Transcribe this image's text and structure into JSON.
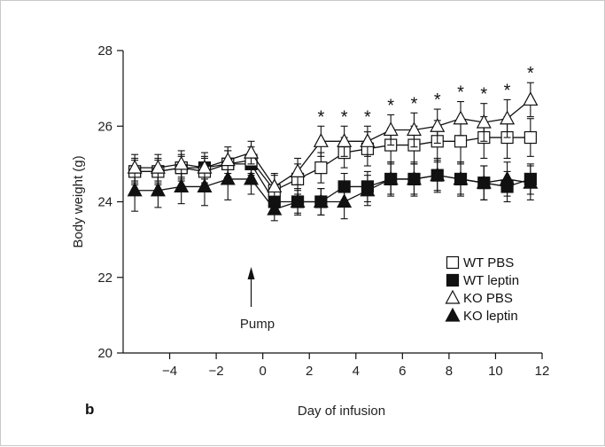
{
  "chart_data": {
    "type": "line",
    "panel_label": "b",
    "xlabel": "Day of infusion",
    "ylabel": "Body weight (g)",
    "xlim": [
      -6,
      12
    ],
    "ylim": [
      20,
      28
    ],
    "xticks": [
      -4,
      -2,
      0,
      2,
      4,
      6,
      8,
      10,
      12
    ],
    "yticks": [
      20,
      22,
      24,
      26,
      28
    ],
    "xtick_labels": [
      "−4",
      "−2",
      "0",
      "2",
      "4",
      "6",
      "8",
      "10",
      "12"
    ],
    "ytick_labels": [
      "20",
      "22",
      "24",
      "26",
      "28"
    ],
    "grid": false,
    "legend": "bottom-right",
    "x": [
      -5.5,
      -4.5,
      -3.5,
      -2.5,
      -1.5,
      -0.5,
      0.5,
      1.5,
      2.5,
      3.5,
      4.5,
      5.5,
      6.5,
      7.5,
      8.5,
      9.5,
      10.5,
      11.5
    ],
    "series": [
      {
        "name": "WT PBS",
        "marker": "square-open",
        "values": [
          24.8,
          24.8,
          24.9,
          24.8,
          25.0,
          25.1,
          24.3,
          24.6,
          24.9,
          25.3,
          25.4,
          25.5,
          25.5,
          25.6,
          25.6,
          25.7,
          25.7,
          25.7
        ],
        "error": [
          0.35,
          0.35,
          0.35,
          0.35,
          0.35,
          0.35,
          0.4,
          0.4,
          0.4,
          0.4,
          0.45,
          0.45,
          0.5,
          0.55,
          0.55,
          0.55,
          0.55,
          0.5
        ]
      },
      {
        "name": "WT leptin",
        "marker": "square-filled",
        "values": [
          24.8,
          24.8,
          24.9,
          24.9,
          25.0,
          25.0,
          24.0,
          24.0,
          24.0,
          24.4,
          24.4,
          24.6,
          24.6,
          24.7,
          24.6,
          24.5,
          24.4,
          24.6
        ],
        "error": [
          0.3,
          0.3,
          0.3,
          0.3,
          0.35,
          0.3,
          0.3,
          0.3,
          0.35,
          0.35,
          0.4,
          0.4,
          0.4,
          0.4,
          0.4,
          0.45,
          0.4,
          0.4
        ]
      },
      {
        "name": "KO PBS",
        "marker": "triangle-open",
        "values": [
          24.9,
          24.9,
          25.0,
          24.9,
          25.1,
          25.3,
          24.4,
          24.8,
          25.6,
          25.6,
          25.6,
          25.9,
          25.9,
          26.0,
          26.2,
          26.1,
          26.2,
          26.7
        ],
        "error": [
          0.35,
          0.35,
          0.35,
          0.4,
          0.35,
          0.3,
          0.35,
          0.35,
          0.4,
          0.4,
          0.4,
          0.4,
          0.45,
          0.45,
          0.45,
          0.5,
          0.5,
          0.45
        ]
      },
      {
        "name": "KO leptin",
        "marker": "triangle-filled",
        "values": [
          24.3,
          24.3,
          24.4,
          24.4,
          24.6,
          24.6,
          23.8,
          24.0,
          24.0,
          24.0,
          24.3,
          24.6,
          24.6,
          24.7,
          24.6,
          24.5,
          24.6,
          24.5
        ],
        "error": [
          0.55,
          0.45,
          0.45,
          0.5,
          0.55,
          0.4,
          0.3,
          0.35,
          0.35,
          0.45,
          0.4,
          0.45,
          0.45,
          0.45,
          0.45,
          0.45,
          0.45,
          0.45
        ]
      }
    ],
    "annotations": {
      "pump_label": "Pump",
      "pump_x": -0.5,
      "significance_marker": "*",
      "significance_x": [
        2.5,
        3.5,
        4.5,
        5.5,
        6.5,
        7.5,
        8.5,
        9.5,
        10.5,
        11.5
      ]
    }
  }
}
